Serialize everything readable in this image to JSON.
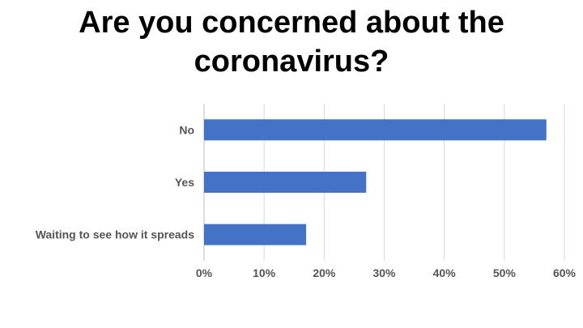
{
  "title": {
    "line1": "Are you concerned about the",
    "line2": "coronavirus?"
  },
  "chart_data": {
    "type": "bar",
    "orientation": "horizontal",
    "title": "Are you concerned about the coronavirus?",
    "categories": [
      "No",
      "Yes",
      "Waiting to see how it spreads"
    ],
    "values": [
      57,
      27,
      17
    ],
    "unit": "%",
    "xlim": [
      0,
      60
    ],
    "x_ticks": [
      "0%",
      "10%",
      "20%",
      "30%",
      "40%",
      "50%",
      "60%"
    ],
    "grid": true,
    "legend": "none",
    "bar_color": "#4472c4"
  }
}
